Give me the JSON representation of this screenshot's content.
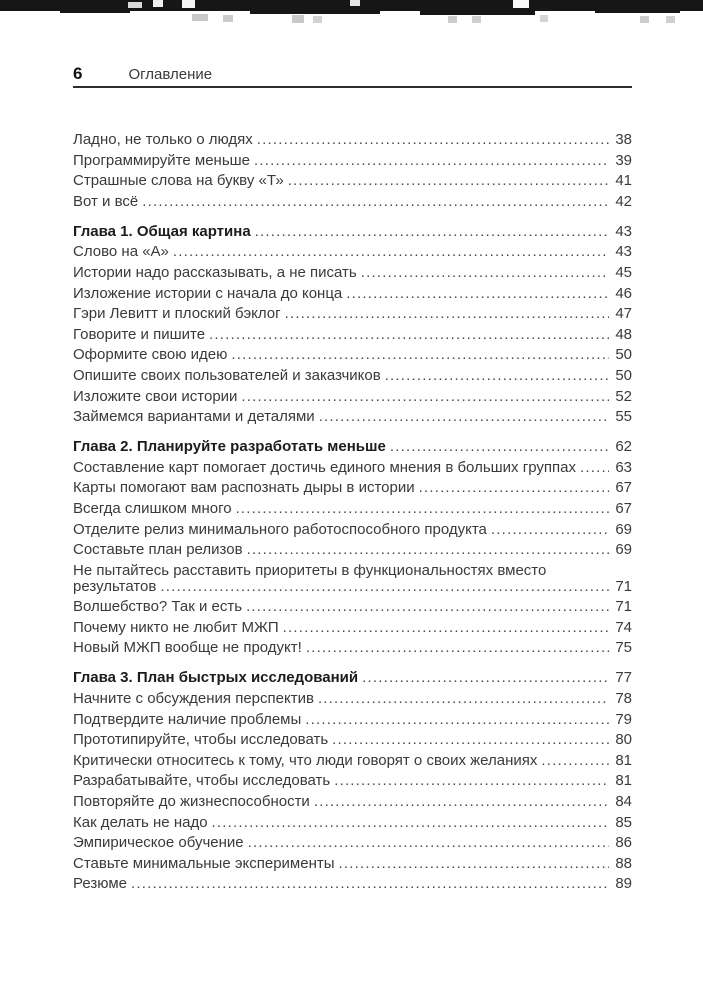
{
  "header": {
    "page_number": "6",
    "running_title": "Оглавление"
  },
  "toc": {
    "sections": [
      {
        "chapter": null,
        "entries": [
          {
            "label": "Ладно, не только о людях",
            "page": "38"
          },
          {
            "label": "Программируйте меньше",
            "page": "39"
          },
          {
            "label": "Страшные слова на букву «Т»",
            "page": "41"
          },
          {
            "label": "Вот и всё",
            "page": "42"
          }
        ]
      },
      {
        "chapter": {
          "label": "Глава 1. Общая картина",
          "page": "43"
        },
        "entries": [
          {
            "label": "Слово на «А»",
            "page": "43"
          },
          {
            "label": "Истории надо рассказывать, а не писать",
            "page": "45"
          },
          {
            "label": "Изложение истории с начала до конца",
            "page": "46"
          },
          {
            "label": "Гэри Левитт и плоский бэклог",
            "page": "47"
          },
          {
            "label": "Говорите и пишите",
            "page": "48"
          },
          {
            "label": "Оформите свою идею",
            "page": "50"
          },
          {
            "label": "Опишите своих пользователей и заказчиков",
            "page": "50"
          },
          {
            "label": "Изложите свои истории",
            "page": "52"
          },
          {
            "label": "Займемся вариантами и деталями",
            "page": "55"
          }
        ]
      },
      {
        "chapter": {
          "label": "Глава 2. Планируйте разработать меньше",
          "page": "62"
        },
        "entries": [
          {
            "label": "Составление карт помогает достичь единого мнения в больших группах",
            "page": "63"
          },
          {
            "label": "Карты помогают вам распознать дыры в истории",
            "page": "67"
          },
          {
            "label": "Всегда слишком много",
            "page": "67"
          },
          {
            "label": "Отделите релиз минимального работоспособного продукта",
            "page": "69"
          },
          {
            "label": "Составьте план релизов",
            "page": "69"
          },
          {
            "label": "Не пытайтесь расставить приоритеты в функциональностях вместо",
            "label_line2": "результатов",
            "page": "71"
          },
          {
            "label": "Волшебство? Так и есть",
            "page": "71"
          },
          {
            "label": "Почему никто не любит МЖП",
            "page": "74"
          },
          {
            "label": "Новый МЖП вообще не продукт!",
            "page": "75"
          }
        ]
      },
      {
        "chapter": {
          "label": "Глава 3. План быстрых исследований",
          "page": "77"
        },
        "entries": [
          {
            "label": "Начните с обсуждения перспектив",
            "page": "78"
          },
          {
            "label": "Подтвердите наличие проблемы",
            "page": "79"
          },
          {
            "label": "Прототипируйте, чтобы исследовать",
            "page": "80"
          },
          {
            "label": "Критически относитесь к тому, что люди говорят о своих желаниях",
            "page": "81"
          },
          {
            "label": "Разрабатывайте, чтобы исследовать",
            "page": "81"
          },
          {
            "label": "Повторяйте до жизнеспособности",
            "page": "84"
          },
          {
            "label": "Как делать не надо",
            "page": "85"
          },
          {
            "label": "Эмпирическое обучение",
            "page": "86"
          },
          {
            "label": "Ставьте минимальные эксперименты",
            "page": "88"
          },
          {
            "label": "Резюме",
            "page": "89"
          }
        ]
      }
    ]
  },
  "colors": {
    "paper": "#ffffff",
    "body_text": "#3a3a3a",
    "chapter_text": "#1c1c1c",
    "rule": "#2e2e2e",
    "scan_edge": "#161616"
  }
}
